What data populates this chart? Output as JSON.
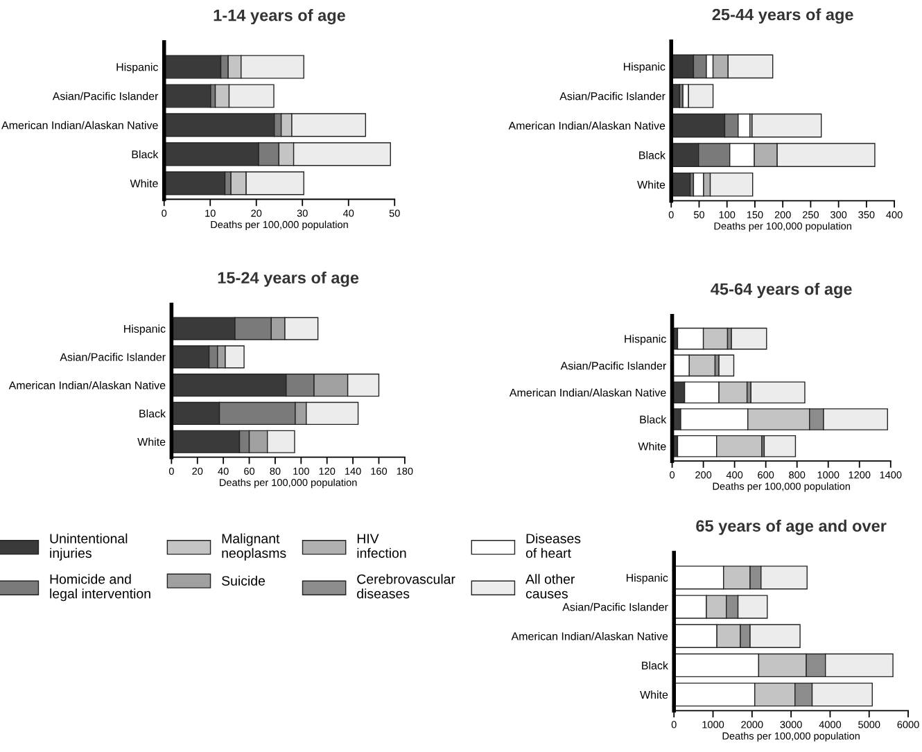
{
  "chart_data": [
    {
      "type": "bar",
      "orientation": "horizontal",
      "stacked": true,
      "title": "1-14 years of age",
      "xlabel": "Deaths per 100,000 population",
      "categories": [
        "Hispanic",
        "Asian/Pacific Islander",
        "American Indian/Alaskan Native",
        "Black",
        "White"
      ],
      "xlim": [
        0,
        50
      ],
      "xticks": [
        0,
        10,
        20,
        30,
        40,
        50
      ],
      "grid": false,
      "series": [
        {
          "color": "#3a3a3a",
          "values": [
            12.3,
            10.1,
            23.9,
            20.5,
            13.2
          ]
        },
        {
          "color": "#7a7a7a",
          "values": [
            1.6,
            1.0,
            1.5,
            4.4,
            1.3
          ]
        },
        {
          "color": "#c4c4c4",
          "values": [
            2.8,
            3.0,
            2.3,
            3.2,
            3.3
          ]
        },
        {
          "color": "#ececec",
          "values": [
            13.6,
            9.7,
            16.0,
            21.0,
            12.5
          ]
        }
      ]
    },
    {
      "type": "bar",
      "orientation": "horizontal",
      "stacked": true,
      "title": "25-44 years of age",
      "xlabel": "Deaths per 100,000 population",
      "categories": [
        "Hispanic",
        "Asian/Pacific Islander",
        "American Indian/Alaskan Native",
        "Black",
        "White"
      ],
      "xlim": [
        0,
        400
      ],
      "xticks": [
        0,
        50,
        100,
        150,
        200,
        250,
        300,
        350,
        400
      ],
      "grid": false,
      "series": [
        {
          "color": "#3a3a3a",
          "values": [
            40,
            15,
            96,
            49,
            34
          ]
        },
        {
          "color": "#7a7a7a",
          "values": [
            23,
            6,
            24,
            56,
            6
          ]
        },
        {
          "color": "#ffffff",
          "values": [
            12,
            10,
            21,
            44,
            18
          ]
        },
        {
          "color": "#b0b0b0",
          "values": [
            27,
            null,
            4,
            41,
            12
          ]
        },
        {
          "color": "#ececec",
          "values": [
            80,
            44,
            124,
            175,
            76
          ]
        }
      ]
    },
    {
      "type": "bar",
      "orientation": "horizontal",
      "stacked": true,
      "title": "15-24 years of age",
      "xlabel": "Deaths per 100,000 population",
      "categories": [
        "Hispanic",
        "Asian/Pacific Islander",
        "American Indian/Alaskan Native",
        "Black",
        "White"
      ],
      "xlim": [
        0,
        180
      ],
      "xticks": [
        0,
        20,
        40,
        60,
        80,
        100,
        120,
        140,
        160,
        180
      ],
      "grid": false,
      "legend": "bottom",
      "series": [
        {
          "name": "Unintentional\ninjuries",
          "color": "#3a3a3a",
          "values": [
            49,
            29,
            88.5,
            37,
            52.5
          ]
        },
        {
          "name": "Homicide and\nlegal intervention",
          "color": "#7a7a7a",
          "values": [
            28,
            6.5,
            21.5,
            58.5,
            7.5
          ]
        },
        {
          "name": "Malignant\nneoplasms",
          "color": "#c4c4c4",
          "values": [
            null,
            null,
            null,
            null,
            null
          ]
        },
        {
          "name": "Suicide",
          "color": "#a0a0a0",
          "values": [
            10.5,
            6,
            26,
            8.5,
            14
          ]
        },
        {
          "name": "HIV\ninfection",
          "color": "#b0b0b0",
          "values": [
            null,
            null,
            null,
            null,
            null
          ]
        },
        {
          "name": "Cerebrovascular\ndiseases",
          "color": "#8c8c8c",
          "values": [
            null,
            null,
            null,
            null,
            null
          ]
        },
        {
          "name": "Diseases\nof heart",
          "color": "#ffffff",
          "values": [
            null,
            null,
            null,
            null,
            null
          ]
        },
        {
          "name": "All other\ncauses",
          "color": "#ececec",
          "values": [
            25.5,
            14.5,
            24,
            40,
            21
          ]
        }
      ]
    },
    {
      "type": "bar",
      "orientation": "horizontal",
      "stacked": true,
      "title": "45-64 years of age",
      "xlabel": "Deaths per 100,000 population",
      "categories": [
        "Hispanic",
        "Asian/Pacific Islander",
        "American Indian/Alaskan Native",
        "Black",
        "White"
      ],
      "xlim": [
        0,
        1400
      ],
      "xticks": [
        0,
        200,
        400,
        600,
        800,
        1000,
        1200,
        1400
      ],
      "grid": false,
      "series": [
        {
          "color": "#3a3a3a",
          "values": [
            35,
            null,
            80,
            55,
            35
          ]
        },
        {
          "color": "#ffffff",
          "values": [
            165,
            110,
            220,
            430,
            250
          ]
        },
        {
          "color": "#c4c4c4",
          "values": [
            155,
            165,
            180,
            395,
            290
          ]
        },
        {
          "color": "#8c8c8c",
          "values": [
            25,
            25,
            25,
            90,
            15
          ]
        },
        {
          "color": "#ececec",
          "values": [
            225,
            95,
            345,
            410,
            200
          ]
        }
      ]
    },
    {
      "type": "bar",
      "orientation": "horizontal",
      "stacked": true,
      "title": "65 years of age and over",
      "xlabel": "Deaths per 100,000 population",
      "categories": [
        "Hispanic",
        "Asian/Pacific Islander",
        "American Indian/Alaskan Native",
        "Black",
        "White"
      ],
      "xlim": [
        0,
        6000
      ],
      "xticks": [
        0,
        1000,
        2000,
        3000,
        4000,
        5000,
        6000
      ],
      "grid": false,
      "series": [
        {
          "color": "#ffffff",
          "values": [
            1270,
            830,
            1100,
            2170,
            2070
          ]
        },
        {
          "color": "#c4c4c4",
          "values": [
            680,
            510,
            600,
            1220,
            1030
          ]
        },
        {
          "color": "#8c8c8c",
          "values": [
            280,
            300,
            250,
            490,
            440
          ]
        },
        {
          "color": "#ececec",
          "values": [
            1180,
            750,
            1280,
            1730,
            1540
          ]
        }
      ]
    }
  ]
}
